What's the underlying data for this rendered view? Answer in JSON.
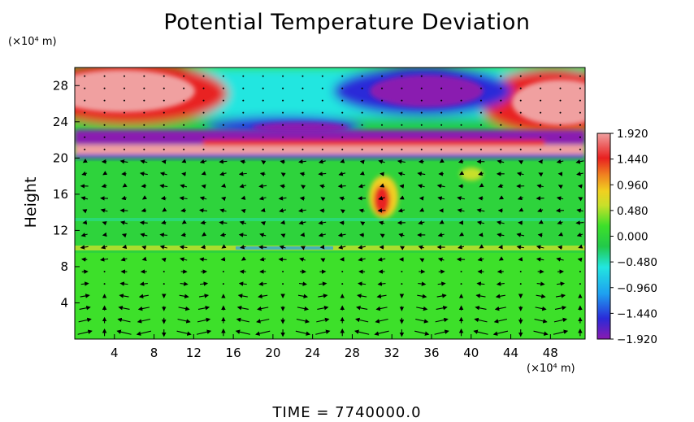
{
  "chart_data": {
    "type": "heatmap",
    "title": "Potential Temperature Deviation",
    "ylabel": "Height",
    "x_unit": "(×10⁴ m)",
    "y_unit": "(×10⁴ m)",
    "x_ticks": [
      4,
      8,
      12,
      16,
      20,
      24,
      28,
      32,
      36,
      40,
      44,
      48
    ],
    "y_ticks": [
      4,
      8,
      12,
      16,
      20,
      24,
      28
    ],
    "xlim": [
      0,
      51.5
    ],
    "ylim": [
      0,
      30
    ],
    "colorbar_ticks": [
      1.92,
      1.44,
      0.96,
      0.48,
      0.0,
      -0.48,
      -0.96,
      -1.44,
      -1.92
    ],
    "colorbar_labels": [
      "1.920",
      "1.440",
      "0.960",
      "0.480",
      "0.000",
      "−0.480",
      "−0.960",
      "−1.440",
      "−1.920"
    ],
    "colorbar_range": [
      -1.92,
      1.92
    ],
    "colormap": [
      "#8a1ab0",
      "#2a2ad8",
      "#1ea0f0",
      "#22e6e0",
      "#22c94a",
      "#3de02a",
      "#c8e02a",
      "#f0d020",
      "#f08020",
      "#e82020",
      "#f0a0a0"
    ],
    "overlay": "wind vectors",
    "footer": "TIME  =  7740000.0"
  }
}
